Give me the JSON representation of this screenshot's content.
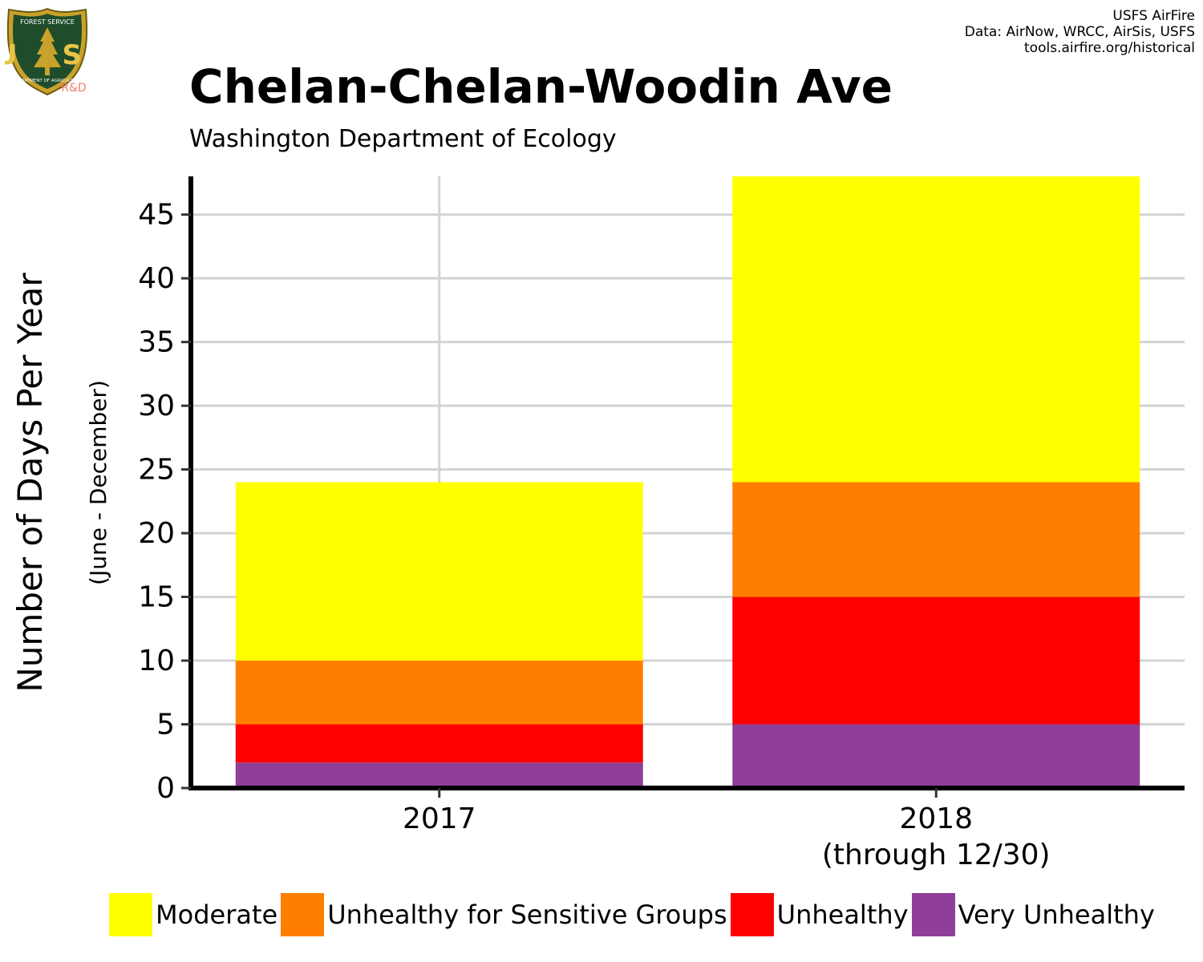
{
  "header": {
    "title": "Chelan-Chelan-Woodin Ave",
    "subtitle": "Washington Department of Ecology",
    "credits": [
      "USFS AirFire",
      "Data: AirNow, WRCC, AirSis, USFS",
      "tools.airfire.org/historical"
    ]
  },
  "logo": {
    "icon": "usfs-shield-logo",
    "top_text": "FOREST SERVICE",
    "letters": "U S",
    "bottom_text": "DEPARTMENT OF AGRICULTURE",
    "tag": "R&D"
  },
  "chart_data": {
    "type": "bar",
    "stacked": true,
    "categories": [
      "2017",
      "2018"
    ],
    "category_sublabels": [
      "",
      "(through 12/30)"
    ],
    "series": [
      {
        "name": "Very Unhealthy",
        "color": "#8F3F97",
        "values": [
          2,
          5
        ]
      },
      {
        "name": "Unhealthy",
        "color": "#FF0000",
        "values": [
          3,
          10
        ]
      },
      {
        "name": "Unhealthy for Sensitive Groups",
        "color": "#FF7E00",
        "values": [
          5,
          9
        ]
      },
      {
        "name": "Moderate",
        "color": "#FFFF00",
        "values": [
          14,
          24
        ]
      }
    ],
    "legend_order": [
      "Moderate",
      "Unhealthy for Sensitive Groups",
      "Unhealthy",
      "Very Unhealthy"
    ],
    "ylabel": "Number of Days Per Year",
    "ylabel_sub": "(June - December)",
    "ylim": [
      0,
      48
    ],
    "yticks": [
      0,
      5,
      10,
      15,
      20,
      25,
      30,
      35,
      40,
      45
    ],
    "grid": true,
    "legend_position": "bottom"
  }
}
